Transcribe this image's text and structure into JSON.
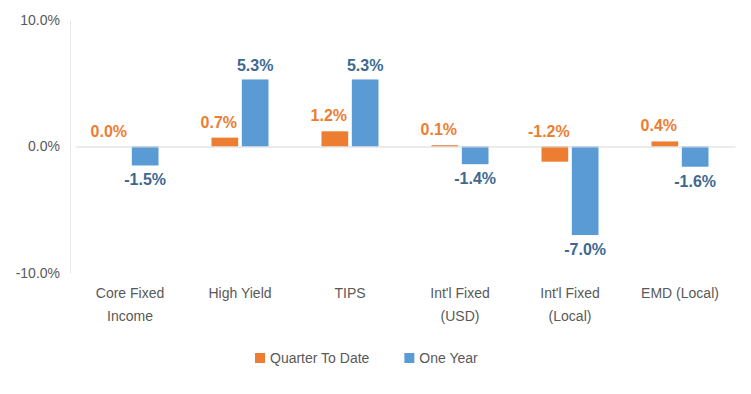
{
  "chart_data": {
    "type": "bar",
    "categories": [
      "Core Fixed Income",
      "High Yield",
      "TIPS",
      "Int'l Fixed (USD)",
      "Int'l Fixed (Local)",
      "EMD (Local)"
    ],
    "series": [
      {
        "name": "Quarter To Date",
        "color": "#ed7d31",
        "values": [
          0.0,
          0.7,
          1.2,
          0.1,
          -1.2,
          0.4
        ],
        "value_labels": [
          "0.0%",
          "0.7%",
          "1.2%",
          "0.1%",
          "-1.2%",
          "0.4%"
        ]
      },
      {
        "name": "One Year",
        "color": "#5b9bd5",
        "values": [
          -1.5,
          5.3,
          5.3,
          -1.4,
          -7.0,
          -1.6
        ],
        "value_labels": [
          "-1.5%",
          "5.3%",
          "5.3%",
          "-1.4%",
          "-7.0%",
          "-1.6%"
        ]
      }
    ],
    "ylim": [
      -10,
      10
    ],
    "yticks": [
      {
        "value": -10,
        "label": "-10.0%"
      },
      {
        "value": 0,
        "label": "0.0%"
      },
      {
        "value": 10,
        "label": "10.0%"
      }
    ],
    "grid": false,
    "legend": "bottom",
    "data_labels": true
  }
}
